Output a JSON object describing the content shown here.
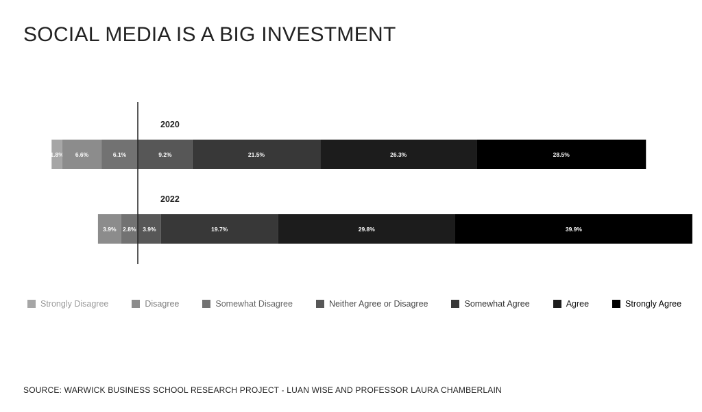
{
  "chart_data": {
    "type": "bar",
    "orientation": "horizontal",
    "stacked": true,
    "title": "SOCIAL MEDIA IS A BIG INVESTMENT",
    "categories": [
      "2020",
      "2022"
    ],
    "series": [
      {
        "name": "Strongly Disagree",
        "color": "#a6a6a6",
        "values": [
          1.8,
          0
        ],
        "labels": [
          "1.8%",
          ""
        ]
      },
      {
        "name": "Disagree",
        "color": "#8c8c8c",
        "values": [
          6.6,
          3.9
        ],
        "labels": [
          "6.6%",
          "3.9%"
        ]
      },
      {
        "name": "Somewhat Disagree",
        "color": "#727272",
        "values": [
          6.1,
          2.8
        ],
        "labels": [
          "6.1%",
          "2.8%"
        ]
      },
      {
        "name": "Neither Agree or Disagree",
        "color": "#575757",
        "values": [
          9.2,
          3.9
        ],
        "labels": [
          "9.2%",
          "3.9%"
        ]
      },
      {
        "name": "Somewhat Agree",
        "color": "#383838",
        "values": [
          21.5,
          19.7
        ],
        "labels": [
          "21.5%",
          "19.7%"
        ]
      },
      {
        "name": "Agree",
        "color": "#1c1c1c",
        "values": [
          26.3,
          29.8
        ],
        "labels": [
          "26.3%",
          "29.8%"
        ]
      },
      {
        "name": "Strongly Agree",
        "color": "#000000",
        "values": [
          28.5,
          39.9
        ],
        "labels": [
          "28.5%",
          "39.9%"
        ]
      }
    ],
    "baseline": "Neutral divide between disagree and agree groups",
    "legend_position": "bottom",
    "grid": false
  },
  "legend_text_colors": [
    "#9a9a9a",
    "#808080",
    "#666666",
    "#4a4a4a",
    "#333333",
    "#1a1a1a",
    "#000000"
  ],
  "source": "SOURCE: WARWICK BUSINESS SCHOOL RESEARCH PROJECT - LUAN WISE AND PROFESSOR LAURA CHAMBERLAIN"
}
